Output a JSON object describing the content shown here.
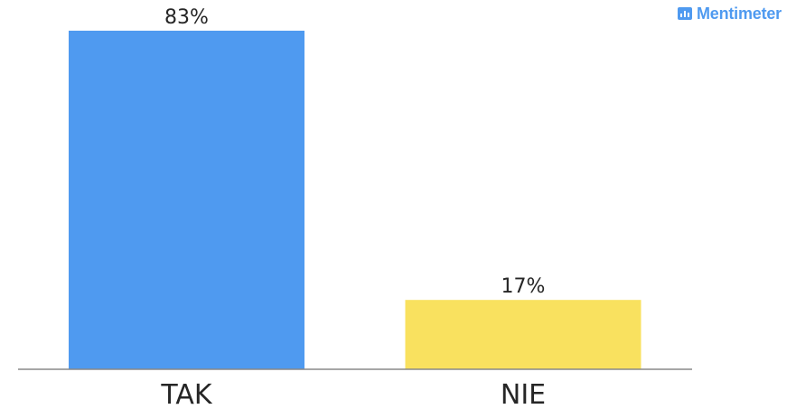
{
  "brand": {
    "logo_text": "Mentimeter",
    "logo_icon": "bar-chart-icon",
    "color": "#4f9af0"
  },
  "chart_data": {
    "type": "bar",
    "categories": [
      "TAK",
      "NIE"
    ],
    "values": [
      83,
      17
    ],
    "value_labels": [
      "83%",
      "17%"
    ],
    "colors": [
      "#4f9af0",
      "#f9e15f"
    ],
    "ylim": [
      0,
      83
    ],
    "grid": false,
    "legend": "none",
    "title": "",
    "xlabel": "",
    "ylabel": ""
  }
}
